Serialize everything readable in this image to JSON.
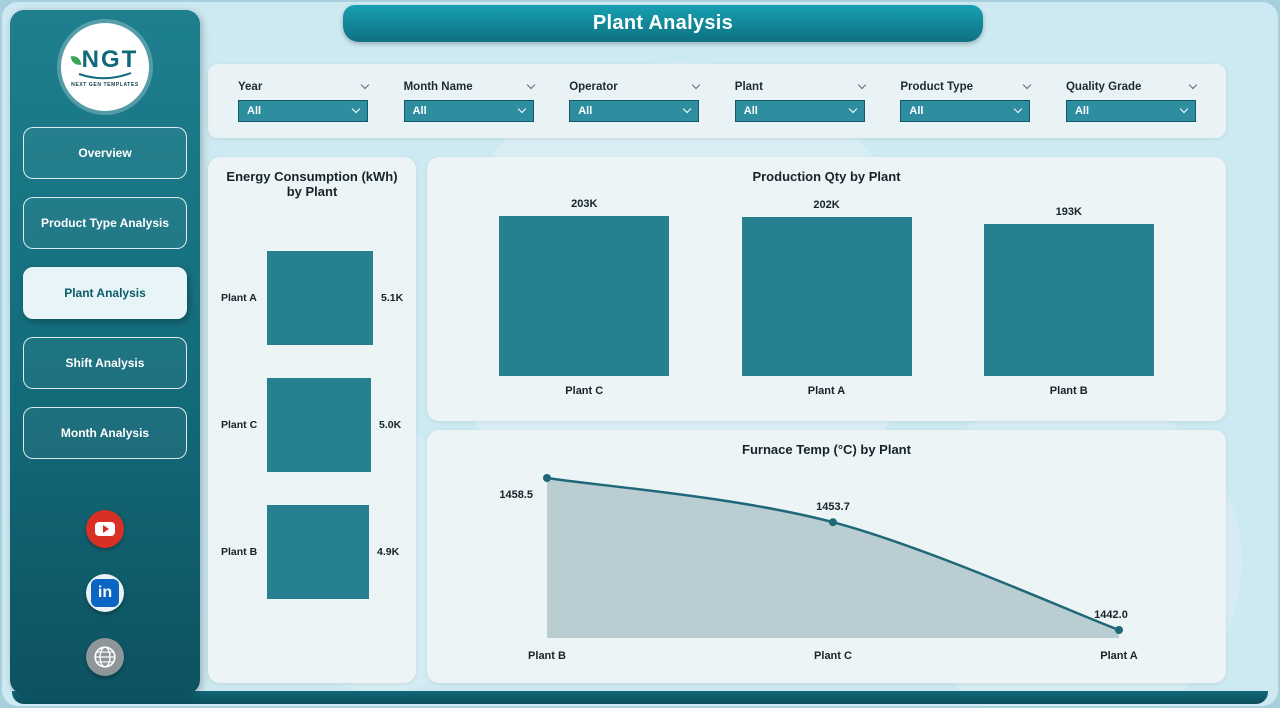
{
  "header": {
    "title": "Plant Analysis"
  },
  "sidebar": {
    "logo": {
      "text": "NGT",
      "subtext": "NEXT GEN TEMPLATES"
    },
    "items": [
      {
        "label": "Overview",
        "active": false
      },
      {
        "label": "Product Type Analysis",
        "active": false
      },
      {
        "label": "Plant Analysis",
        "active": true
      },
      {
        "label": "Shift Analysis",
        "active": false
      },
      {
        "label": "Month Analysis",
        "active": false
      }
    ],
    "social": [
      {
        "name": "youtube"
      },
      {
        "name": "linkedin"
      },
      {
        "name": "website"
      }
    ]
  },
  "filters": {
    "items": [
      {
        "label": "Year",
        "value": "All"
      },
      {
        "label": "Month Name",
        "value": "All"
      },
      {
        "label": "Operator",
        "value": "All"
      },
      {
        "label": "Plant",
        "value": "All"
      },
      {
        "label": "Product Type",
        "value": "All"
      },
      {
        "label": "Quality Grade",
        "value": "All"
      }
    ]
  },
  "chart_data": [
    {
      "type": "bar",
      "orientation": "horizontal",
      "title": "Energy Consumption (kWh) by Plant",
      "categories": [
        "Plant A",
        "Plant C",
        "Plant B"
      ],
      "values": [
        5100,
        5000,
        4900
      ],
      "value_labels": [
        "5.1K",
        "5.0K",
        "4.9K"
      ],
      "bar_color": "#27808f"
    },
    {
      "type": "bar",
      "orientation": "vertical",
      "title": "Production Qty by Plant",
      "categories": [
        "Plant C",
        "Plant A",
        "Plant B"
      ],
      "values": [
        203000,
        202000,
        193000
      ],
      "value_labels": [
        "203K",
        "202K",
        "193K"
      ],
      "bar_color": "#27808f"
    },
    {
      "type": "area",
      "title": "Furnace Temp (°C) by Plant",
      "categories": [
        "Plant B",
        "Plant C",
        "Plant A"
      ],
      "values": [
        1458.5,
        1453.7,
        1442.0
      ],
      "value_labels": [
        "1458.5",
        "1453.7",
        "1442.0"
      ],
      "line_color": "#1f6877",
      "fill_color": "#b9cdd2"
    }
  ],
  "colors": {
    "accent_teal": "#1f8090",
    "sidebar_top": "#1e7f8e",
    "sidebar_bottom": "#0d5260",
    "dropdown_bg": "#2e8ea0",
    "panel_bg": "#ecf4f6",
    "page_bg": "#cde9f1"
  }
}
